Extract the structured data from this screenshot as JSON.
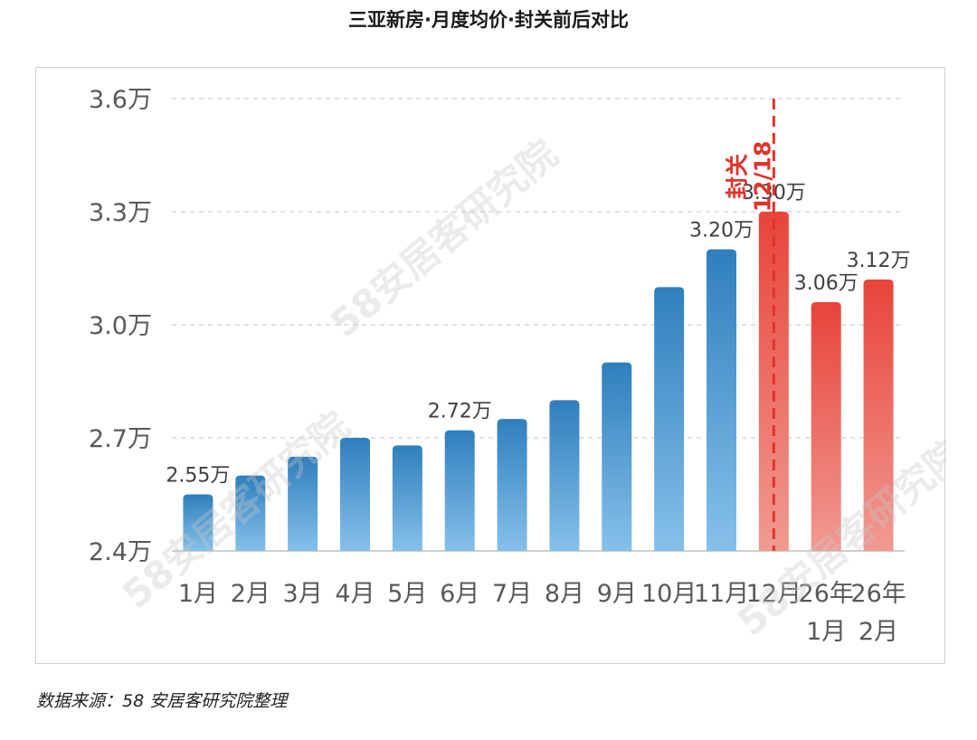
{
  "title": "三亚新房·月度均价·封关前后对比",
  "source": "数据来源：58 安居客研究院整理",
  "watermark": "58安居客研究院",
  "colors": {
    "blue_top": "#2f7fbd",
    "blue_bottom": "#86c0ea",
    "red_top": "#e8443a",
    "red_bottom": "#f19a92",
    "marker": "#e0342a",
    "grid": "#d9d9d9",
    "axis": "#bfbfbf"
  },
  "chart_data": {
    "type": "bar",
    "title": "三亚新房·月度均价·封关前后对比",
    "categories": [
      "1月",
      "2月",
      "3月",
      "4月",
      "5月",
      "6月",
      "7月",
      "8月",
      "9月",
      "10月",
      "11月",
      "12月",
      "26年1月",
      "26年2月"
    ],
    "category_lines": [
      [
        "1月"
      ],
      [
        "2月"
      ],
      [
        "3月"
      ],
      [
        "4月"
      ],
      [
        "5月"
      ],
      [
        "6月"
      ],
      [
        "7月"
      ],
      [
        "8月"
      ],
      [
        "9月"
      ],
      [
        "10月"
      ],
      [
        "11月"
      ],
      [
        "12月"
      ],
      [
        "26年",
        "1月"
      ],
      [
        "26年",
        "2月"
      ]
    ],
    "values": [
      2.55,
      2.6,
      2.65,
      2.7,
      2.68,
      2.72,
      2.75,
      2.8,
      2.9,
      3.1,
      3.2,
      3.3,
      3.06,
      3.12
    ],
    "highlight": [
      false,
      false,
      false,
      false,
      false,
      false,
      false,
      false,
      false,
      false,
      false,
      true,
      true,
      true
    ],
    "value_labels": [
      "2.55万",
      null,
      null,
      null,
      null,
      "2.72万",
      null,
      null,
      null,
      null,
      "3.20万",
      "3.30万",
      "3.06万",
      "3.12万"
    ],
    "ylim": [
      2.4,
      3.6
    ],
    "yticks": [
      {
        "value": 2.4,
        "label": "2.4万"
      },
      {
        "value": 2.7,
        "label": "2.7万"
      },
      {
        "value": 3.0,
        "label": "3.0万"
      },
      {
        "value": 3.3,
        "label": "3.3万"
      },
      {
        "value": 3.6,
        "label": "3.6万"
      }
    ],
    "grid": true,
    "marker": {
      "after_category": "12月",
      "label_line1": "封关",
      "label_line2": "12/18"
    }
  }
}
